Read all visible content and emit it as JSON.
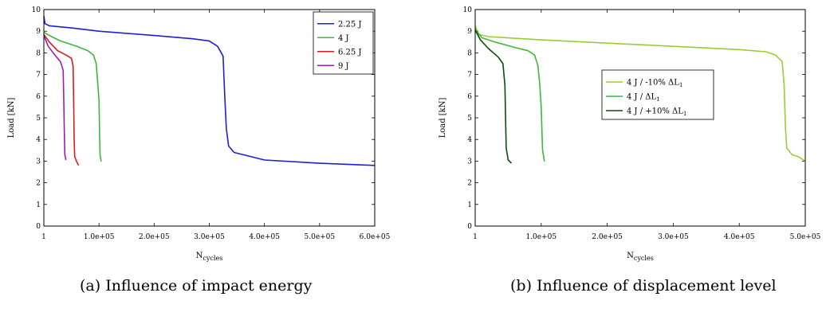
{
  "captions": {
    "a": "(a) Influence of impact energy",
    "b": "(b) Influence of displacement level"
  },
  "chart_data": [
    {
      "type": "line",
      "ylabel": "Load [kN]",
      "xlabel_main": "N",
      "xlabel_sub": "cycles",
      "xlim": [
        1,
        600000
      ],
      "ylim": [
        0,
        10
      ],
      "yticks": [
        0,
        1,
        2,
        3,
        4,
        5,
        6,
        7,
        8,
        9,
        10
      ],
      "xticks": [
        {
          "v": 1,
          "label": "1"
        },
        {
          "v": 100000,
          "label": "1.0e+05"
        },
        {
          "v": 200000,
          "label": "2.0e+05"
        },
        {
          "v": 300000,
          "label": "3.0e+05"
        },
        {
          "v": 400000,
          "label": "4.0e+05"
        },
        {
          "v": 500000,
          "label": "5.0e+05"
        },
        {
          "v": 600000,
          "label": "6.0e+05"
        }
      ],
      "legend_position": "top-right",
      "series": [
        {
          "name": "2.25 J",
          "color": "#1f1fd6",
          "points": [
            [
              1,
              9.7
            ],
            [
              2000,
              9.35
            ],
            [
              10000,
              9.25
            ],
            [
              50000,
              9.15
            ],
            [
              100000,
              9.0
            ],
            [
              200000,
              8.8
            ],
            [
              270000,
              8.65
            ],
            [
              300000,
              8.55
            ],
            [
              315000,
              8.3
            ],
            [
              325000,
              7.85
            ],
            [
              328000,
              6.0
            ],
            [
              331000,
              4.5
            ],
            [
              335000,
              3.7
            ],
            [
              345000,
              3.4
            ],
            [
              400000,
              3.05
            ],
            [
              500000,
              2.9
            ],
            [
              600000,
              2.8
            ]
          ]
        },
        {
          "name": "4 J",
          "color": "#3cb83c",
          "points": [
            [
              1,
              8.95
            ],
            [
              10000,
              8.8
            ],
            [
              30000,
              8.55
            ],
            [
              60000,
              8.3
            ],
            [
              80000,
              8.1
            ],
            [
              90000,
              7.9
            ],
            [
              95000,
              7.5
            ],
            [
              98000,
              6.5
            ],
            [
              100000,
              5.8
            ],
            [
              101000,
              4.2
            ],
            [
              102000,
              3.3
            ],
            [
              104000,
              2.98
            ]
          ]
        },
        {
          "name": "6.25 J",
          "color": "#d81b1b",
          "points": [
            [
              1,
              8.85
            ],
            [
              10000,
              8.5
            ],
            [
              25000,
              8.1
            ],
            [
              40000,
              7.9
            ],
            [
              50000,
              7.75
            ],
            [
              53000,
              7.4
            ],
            [
              54000,
              6.0
            ],
            [
              55000,
              4.0
            ],
            [
              56000,
              3.2
            ],
            [
              60000,
              2.95
            ],
            [
              63000,
              2.8
            ]
          ]
        },
        {
          "name": "9 J",
          "color": "#9a1fb0",
          "points": [
            [
              1,
              8.8
            ],
            [
              8000,
              8.3
            ],
            [
              20000,
              7.9
            ],
            [
              30000,
              7.6
            ],
            [
              35000,
              7.2
            ],
            [
              36000,
              6.0
            ],
            [
              37000,
              4.5
            ],
            [
              38000,
              3.3
            ],
            [
              40000,
              3.05
            ]
          ]
        }
      ]
    },
    {
      "type": "line",
      "ylabel": "Load [kN]",
      "xlabel_main": "N",
      "xlabel_sub": "cycles",
      "xlim": [
        1,
        500000
      ],
      "ylim": [
        0,
        10
      ],
      "yticks": [
        0,
        1,
        2,
        3,
        4,
        5,
        6,
        7,
        8,
        9,
        10
      ],
      "xticks": [
        {
          "v": 1,
          "label": "1"
        },
        {
          "v": 100000,
          "label": "1.0e+05"
        },
        {
          "v": 200000,
          "label": "2.0e+05"
        },
        {
          "v": 300000,
          "label": "3.0e+05"
        },
        {
          "v": 400000,
          "label": "4.0e+05"
        },
        {
          "v": 500000,
          "label": "5.0e+05"
        }
      ],
      "legend_position": "center-right",
      "series": [
        {
          "name": "4 J / -10% ΔL",
          "name_sub": "1",
          "color": "#9acd32",
          "points": [
            [
              1,
              9.25
            ],
            [
              5000,
              8.85
            ],
            [
              20000,
              8.75
            ],
            [
              100000,
              8.6
            ],
            [
              200000,
              8.45
            ],
            [
              300000,
              8.3
            ],
            [
              400000,
              8.15
            ],
            [
              440000,
              8.05
            ],
            [
              455000,
              7.9
            ],
            [
              465000,
              7.6
            ],
            [
              468000,
              6.5
            ],
            [
              470000,
              4.5
            ],
            [
              472000,
              3.6
            ],
            [
              480000,
              3.3
            ],
            [
              490000,
              3.2
            ],
            [
              500000,
              3.0
            ]
          ]
        },
        {
          "name": "4 J / ΔL",
          "name_sub": "1",
          "color": "#3cb83c",
          "points": [
            [
              1,
              9.1
            ],
            [
              10000,
              8.7
            ],
            [
              30000,
              8.5
            ],
            [
              60000,
              8.25
            ],
            [
              80000,
              8.1
            ],
            [
              90000,
              7.9
            ],
            [
              95000,
              7.4
            ],
            [
              98000,
              6.5
            ],
            [
              100000,
              5.5
            ],
            [
              102000,
              3.5
            ],
            [
              105000,
              2.98
            ]
          ]
        },
        {
          "name": "4 J / +10% ΔL",
          "name_sub": "1",
          "color": "#0b4d0b",
          "points": [
            [
              1,
              9.05
            ],
            [
              8000,
              8.6
            ],
            [
              20000,
              8.2
            ],
            [
              35000,
              7.8
            ],
            [
              42000,
              7.5
            ],
            [
              45000,
              6.5
            ],
            [
              46000,
              5.0
            ],
            [
              47000,
              3.6
            ],
            [
              50000,
              3.05
            ],
            [
              55000,
              2.9
            ]
          ]
        }
      ]
    }
  ]
}
